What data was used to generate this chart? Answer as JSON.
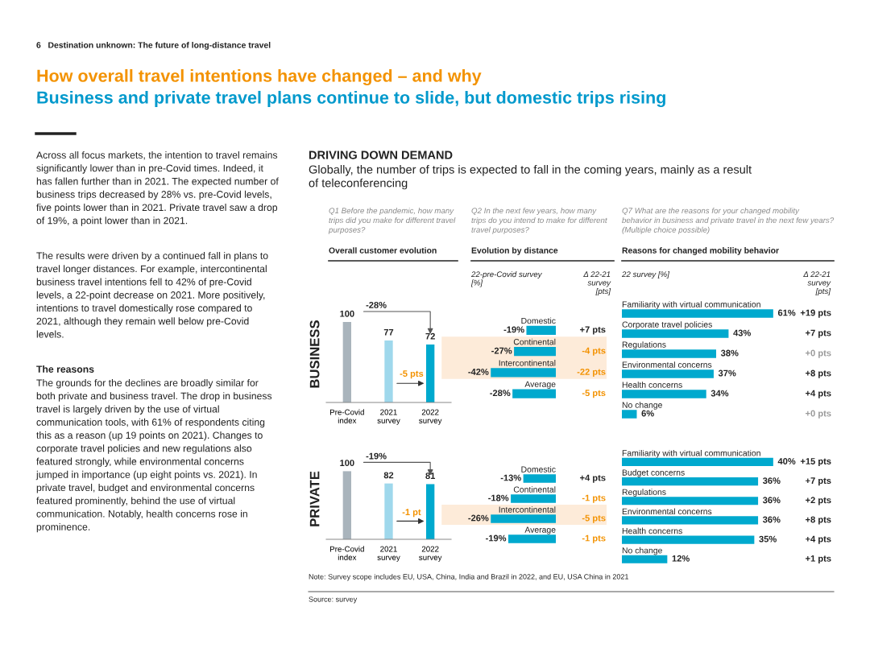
{
  "chart_data": [
    {
      "type": "other",
      "title": "How overall travel intentions have changed – and why",
      "subtitle": "Business and private travel plans continue to slide, but domestic trips rising",
      "annotations": [
        "6   Destination unknown: The future of long-distance travel",
        "Across all focus markets, the intention to travel remains\nsignificantly lower than in pre-Covid times. Indeed, it\nhas fallen further than in 2021. The expected number of\nbusiness trips decreased by 28% vs. pre-Covid levels,\nfive points lower than in 2021. Private travel saw a drop\nof 19%, a point lower than in 2021.",
        "The results were driven by a continued fall in plans to\ntravel longer distances. For example, intercontinental\nbusiness travel intentions fell to 42% of pre-Covid\nlevels, a 22-point decrease on 2021. More positively,\nintentions to travel domestically rose compared to\n2021, although they remain well below pre-Covid\nlevels.",
        "The reasons",
        "The grounds for the declines are broadly similar for\nboth private and business travel. The drop in business\ntravel is largely driven by the use of virtual\ncommunication tools, with 61% of respondents citing\nthis as a reason (up 19 points on 2021). Changes to\ncorporate travel policies and new regulations also\nfeatured strongly, while environmental concerns\njumped in importance (up eight points vs. 2021). In\nprivate travel, budget and environmental concerns\nfeatured prominently, behind the use of virtual\ncommunication. Notably, health concerns rose in\nprominence.",
        "DRIVING DOWN DEMAND",
        "Globally, the number of trips is expected to fall in the coming years, mainly as a result\nof teleconferencing",
        "Note: Survey scope includes EU, USA, China, India and Brazil in 2022, and EU, USA China in 2021",
        "Source: survey"
      ]
    },
    {
      "type": "bar",
      "title": "Overall customer evolution",
      "subtitle": "Q1 Before the pandemic, how many\ntrips did you make for different travel\npurposes?",
      "ylabel": "BUSINESS",
      "categories": [
        "Pre-Covid\nindex",
        "2021\nsurvey",
        "2022\nsurvey"
      ],
      "values": [
        100,
        77,
        72
      ],
      "colors": [
        "#a9b4bc",
        "#9fd8ec",
        "#00a9ce"
      ],
      "data_labels": true,
      "annotations": [
        "-28%",
        "-5 pts"
      ]
    },
    {
      "type": "bar",
      "orientation": "horizontal",
      "title": "Evolution by distance",
      "subtitle": "Q2 In the next few years, how many\ntrips do you intend to make for different\ntravel purposes?",
      "categories": [
        "Domestic",
        "Continental",
        "Intercontinental",
        "Average"
      ],
      "values": [
        -19,
        -27,
        -42,
        -28
      ],
      "color": "#00a9ce",
      "value_labels": [
        "-19%",
        "-27%",
        "-42%",
        "-28%"
      ],
      "bands": [
        {
          "axis": "y",
          "from": "Continental",
          "to": "Intercontinental",
          "color": "#fdebd9"
        }
      ],
      "annotations": [
        "22-pre-Covid survey\n[%]",
        "Δ 22-21\nsurvey\n[pts]",
        "+7 pts",
        "-4 pts",
        "-22 pts",
        "-5 pts"
      ]
    },
    {
      "type": "bar",
      "orientation": "horizontal",
      "title": "Reasons for changed mobility behavior",
      "subtitle": "Q7 What are the reasons for your changed mobility\nbehavior in business and private travel in the next few years?\n(Multiple choice possible)",
      "categories": [
        "Familiarity with virtual communication",
        "Corporate travel policies",
        "Regulations",
        "Environmental concerns",
        "Health concerns",
        "No change"
      ],
      "values": [
        61,
        43,
        38,
        37,
        34,
        6
      ],
      "color": "#00a9ce",
      "value_labels": [
        "61%",
        "43%",
        "38%",
        "37%",
        "34%",
        "6%"
      ],
      "annotations": [
        "22 survey [%]",
        "Δ 22-21\nsurvey\n[pts]",
        "+19 pts",
        "+7 pts",
        "+0 pts",
        "+8 pts",
        "+4 pts",
        "+0 pts"
      ]
    },
    {
      "type": "bar",
      "ylabel": "PRIVATE",
      "categories": [
        "Pre-Covid\nindex",
        "2021\nsurvey",
        "2022\nsurvey"
      ],
      "values": [
        100,
        82,
        81
      ],
      "colors": [
        "#a9b4bc",
        "#9fd8ec",
        "#00a9ce"
      ],
      "data_labels": true,
      "annotations": [
        "-19%",
        "-1 pt"
      ]
    },
    {
      "type": "bar",
      "orientation": "horizontal",
      "categories": [
        "Domestic",
        "Continental",
        "Intercontinental",
        "Average"
      ],
      "values": [
        -13,
        -18,
        -26,
        -19
      ],
      "color": "#00a9ce",
      "value_labels": [
        "-13%",
        "-18%",
        "-26%",
        "-19%"
      ],
      "bands": [
        {
          "axis": "y",
          "from": "Intercontinental",
          "to": "Intercontinental",
          "color": "#fdebd9"
        }
      ],
      "annotations": [
        "+4 pts",
        "-1 pts",
        "-5 pts",
        "-1 pts"
      ]
    },
    {
      "type": "bar",
      "orientation": "horizontal",
      "categories": [
        "Familiarity with virtual communication",
        "Budget concerns",
        "Regulations",
        "Environmental concerns",
        "Health concerns",
        "No change"
      ],
      "values": [
        40,
        36,
        36,
        36,
        35,
        12
      ],
      "color": "#00a9ce",
      "value_labels": [
        "40%",
        "36%",
        "36%",
        "36%",
        "35%",
        "12%"
      ],
      "annotations": [
        "+15 pts",
        "+7 pts",
        "+2 pts",
        "+8 pts",
        "+4 pts",
        "+1 pts"
      ]
    }
  ]
}
